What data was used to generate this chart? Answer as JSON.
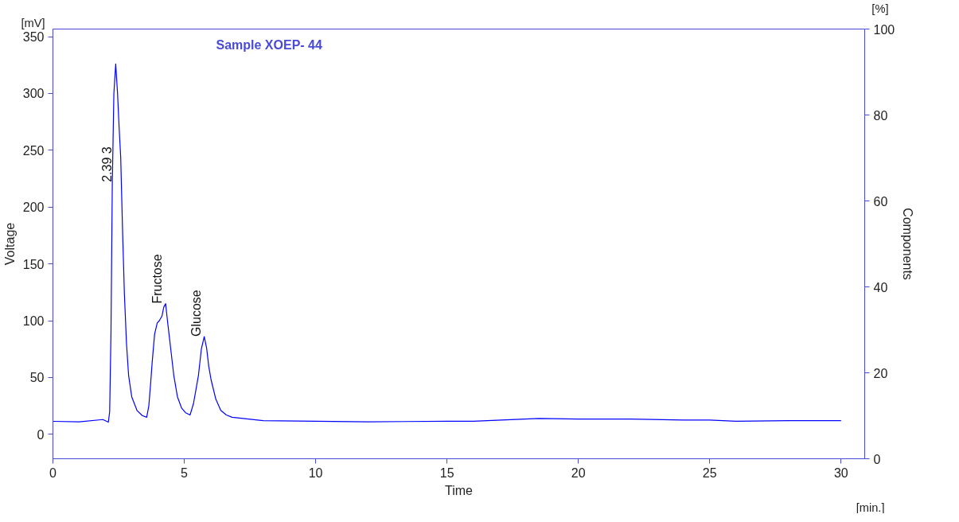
{
  "chart_data": {
    "type": "line",
    "title": "Sample XOEP- 44",
    "xlabel": "Time",
    "ylabel": "Voltage",
    "y2label": "Components",
    "x": [
      0,
      1.0,
      1.9,
      2.11,
      2.16,
      2.21,
      2.26,
      2.32,
      2.39,
      2.46,
      2.52,
      2.58,
      2.65,
      2.72,
      2.8,
      2.88,
      3.0,
      3.2,
      3.4,
      3.57,
      3.65,
      3.72,
      3.78,
      3.87,
      3.97,
      4.05,
      4.15,
      4.22,
      4.29,
      4.36,
      4.42,
      4.48,
      4.6,
      4.74,
      4.9,
      5.05,
      5.22,
      5.35,
      5.45,
      5.54,
      5.65,
      5.76,
      5.85,
      5.93,
      6.02,
      6.2,
      6.39,
      6.6,
      6.82,
      8.0,
      10.0,
      12.0,
      15.0,
      16.0,
      18.5,
      20.0,
      22.0,
      24.0,
      25.0,
      26.0,
      28.0,
      30.0
    ],
    "series": [
      {
        "color": "#0000ff",
        "values": [
          11.4,
          11,
          13,
          10.7,
          20,
          90,
          220,
          300,
          326,
          300,
          270,
          244,
          180,
          124,
          80,
          52,
          33,
          21,
          16.5,
          15,
          25,
          45,
          64,
          88,
          98,
          100,
          104,
          112,
          115,
          100,
          88,
          76,
          52,
          33,
          23,
          19,
          17,
          27,
          40,
          52,
          75,
          86,
          76,
          60,
          48,
          31,
          21,
          17,
          15,
          12,
          11.5,
          11,
          11.5,
          11.5,
          14,
          13.5,
          13.5,
          12.5,
          12.5,
          11.5,
          12,
          12
        ]
      }
    ],
    "xlim": [
      0,
      30.9
    ],
    "ylim": [
      -21.5,
      356.7
    ],
    "y2lim": [
      0,
      100
    ],
    "xticks": [
      0,
      5,
      10,
      15,
      20,
      25,
      30
    ],
    "yticks": [
      0,
      50,
      100,
      150,
      200,
      250,
      300,
      350
    ],
    "y2ticks": [
      0,
      20,
      40,
      60,
      80,
      100
    ],
    "annotations": [
      {
        "text": "2.39    3",
        "x": 2.39,
        "y": 222
      },
      {
        "text": "Fructose",
        "x": 4.29,
        "y": 115
      },
      {
        "text": "Glucose",
        "x": 5.76,
        "y": 86
      },
      "[mV]",
      "[%]",
      "[min.]"
    ],
    "grid": false,
    "marker": "none",
    "line_style": "solid"
  }
}
